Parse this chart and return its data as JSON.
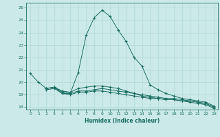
{
  "xlabel": "Humidex (Indice chaleur)",
  "xlim": [
    -0.5,
    23.5
  ],
  "ylim": [
    17.8,
    26.4
  ],
  "xticks": [
    0,
    1,
    2,
    3,
    4,
    5,
    6,
    7,
    8,
    9,
    10,
    11,
    12,
    13,
    14,
    15,
    16,
    17,
    18,
    19,
    20,
    21,
    22,
    23
  ],
  "yticks": [
    18,
    19,
    20,
    21,
    22,
    23,
    24,
    25,
    26
  ],
  "background_color": "#cce9e9",
  "grid_color": "#b0d8d8",
  "line_color": "#1a6e63",
  "series": [
    {
      "x": [
        0,
        1,
        2,
        3,
        4,
        5,
        6,
        7,
        8,
        9,
        10,
        11,
        12,
        13,
        14,
        15,
        16,
        17,
        18,
        19,
        20,
        21,
        22,
        23
      ],
      "y": [
        20.7,
        20.0,
        19.5,
        19.6,
        19.1,
        19.1,
        20.8,
        23.8,
        25.2,
        25.8,
        25.3,
        24.2,
        23.3,
        22.0,
        21.3,
        19.8,
        19.4,
        19.1,
        18.9,
        18.7,
        18.6,
        18.5,
        18.4,
        18.1
      ]
    },
    {
      "x": [
        2,
        3,
        4,
        5,
        6,
        7,
        8,
        9,
        10,
        11,
        12,
        13,
        14,
        15,
        16,
        17,
        18,
        19,
        20,
        21,
        22,
        23
      ],
      "y": [
        19.5,
        19.6,
        19.2,
        19.1,
        19.3,
        19.3,
        19.4,
        19.5,
        19.4,
        19.3,
        19.2,
        19.1,
        19.0,
        18.9,
        18.8,
        18.7,
        18.7,
        18.6,
        18.5,
        18.4,
        18.3,
        18.0
      ]
    },
    {
      "x": [
        2,
        3,
        4,
        5,
        6,
        7,
        8,
        9,
        10,
        11,
        12,
        13,
        14,
        15,
        16,
        17,
        18,
        19,
        20,
        21,
        22,
        23
      ],
      "y": [
        19.5,
        19.6,
        19.3,
        19.2,
        19.5,
        19.6,
        19.7,
        19.7,
        19.6,
        19.5,
        19.3,
        19.1,
        18.9,
        18.8,
        18.7,
        18.6,
        18.6,
        18.5,
        18.5,
        18.4,
        18.3,
        18.0
      ]
    },
    {
      "x": [
        2,
        3,
        4,
        5,
        6,
        7,
        8,
        9,
        10,
        11,
        12,
        13,
        14,
        15,
        16,
        17,
        18,
        19,
        20,
        21,
        22,
        23
      ],
      "y": [
        19.4,
        19.5,
        19.1,
        19.0,
        19.2,
        19.2,
        19.3,
        19.3,
        19.2,
        19.1,
        19.0,
        18.9,
        18.8,
        18.7,
        18.7,
        18.6,
        18.6,
        18.5,
        18.4,
        18.3,
        18.2,
        17.9
      ]
    }
  ]
}
